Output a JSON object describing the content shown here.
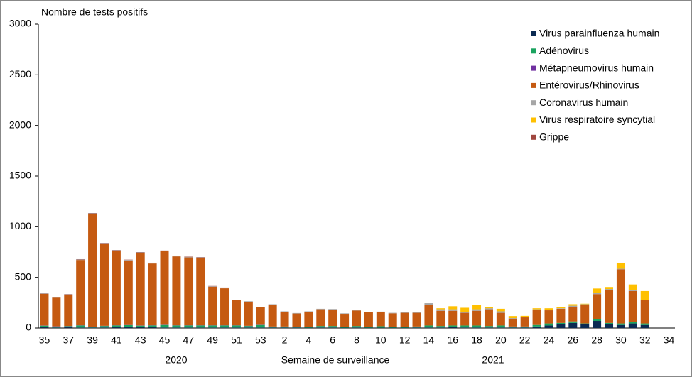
{
  "chart_data": {
    "type": "stacked_bar",
    "y_label": "Nombre de tests positifs",
    "x_label": "Semaine de surveillance",
    "annotations": [
      "2020",
      "2021"
    ],
    "categories": [
      "35",
      null,
      "37",
      null,
      "39",
      null,
      "41",
      null,
      "43",
      null,
      "45",
      null,
      "47",
      null,
      "49",
      null,
      "51",
      null,
      "53",
      null,
      "2",
      null,
      "4",
      null,
      "6",
      null,
      "8",
      null,
      "10",
      null,
      "12",
      null,
      "14",
      null,
      "16",
      null,
      "18",
      null,
      "20",
      null,
      "22",
      null,
      "24",
      null,
      "26",
      null,
      "28",
      null,
      "30",
      null,
      "32",
      null,
      "34"
    ],
    "ylim": [
      0,
      3000
    ],
    "yticks": [
      0,
      500,
      1000,
      1500,
      2000,
      2500,
      3000
    ],
    "grid": false,
    "legend": "upper right",
    "series": [
      {
        "name": "Virus parainfluenza humain",
        "color": "#0b2a52",
        "values": [
          8,
          5,
          8,
          5,
          5,
          5,
          10,
          8,
          8,
          10,
          5,
          5,
          5,
          5,
          5,
          5,
          5,
          5,
          5,
          5,
          5,
          5,
          3,
          5,
          5,
          3,
          5,
          3,
          3,
          3,
          3,
          5,
          5,
          5,
          10,
          5,
          5,
          5,
          5,
          5,
          5,
          15,
          25,
          35,
          50,
          35,
          70,
          35,
          30,
          45,
          30,
          null,
          null
        ]
      },
      {
        "name": "Adénovirus",
        "color": "#1aa35f",
        "values": [
          15,
          10,
          10,
          20,
          5,
          15,
          15,
          20,
          15,
          15,
          25,
          20,
          20,
          20,
          20,
          20,
          20,
          15,
          25,
          10,
          10,
          5,
          10,
          15,
          15,
          10,
          15,
          10,
          15,
          10,
          10,
          10,
          20,
          15,
          15,
          20,
          20,
          15,
          20,
          10,
          10,
          15,
          20,
          15,
          15,
          10,
          20,
          15,
          15,
          15,
          15,
          null,
          null
        ]
      },
      {
        "name": "Métapneumovirus humain",
        "color": "#7030a0",
        "values": [
          2,
          2,
          2,
          2,
          2,
          2,
          2,
          2,
          2,
          2,
          2,
          2,
          2,
          2,
          2,
          2,
          2,
          2,
          2,
          0,
          0,
          0,
          0,
          0,
          0,
          0,
          0,
          0,
          0,
          0,
          0,
          0,
          0,
          0,
          0,
          0,
          0,
          0,
          0,
          0,
          0,
          0,
          0,
          0,
          0,
          0,
          0,
          0,
          0,
          0,
          0,
          null,
          null
        ]
      },
      {
        "name": "Entérovirus/Rhinovirus",
        "color": "#c55a11",
        "values": [
          312,
          283,
          307,
          645,
          1115,
          810,
          735,
          637,
          717,
          610,
          725,
          680,
          670,
          665,
          380,
          365,
          248,
          238,
          173,
          210,
          145,
          133,
          147,
          165,
          163,
          127,
          153,
          142,
          139,
          132,
          137,
          135,
          200,
          150,
          145,
          125,
          145,
          165,
          125,
          78,
          90,
          150,
          130,
          140,
          145,
          185,
          245,
          325,
          535,
          305,
          230,
          null,
          null
        ]
      },
      {
        "name": "Coronavirus humain",
        "color": "#a6a6a6",
        "values": [
          5,
          5,
          5,
          5,
          5,
          5,
          5,
          5,
          5,
          5,
          5,
          5,
          5,
          5,
          5,
          5,
          5,
          5,
          5,
          10,
          5,
          5,
          5,
          5,
          5,
          5,
          5,
          5,
          5,
          5,
          5,
          5,
          20,
          15,
          15,
          10,
          15,
          10,
          15,
          5,
          5,
          5,
          5,
          5,
          10,
          5,
          10,
          10,
          5,
          10,
          5,
          null,
          null
        ]
      },
      {
        "name": "Virus respiratoire syncytial",
        "color": "#ffc000",
        "values": [
          0,
          0,
          0,
          0,
          0,
          0,
          0,
          0,
          0,
          0,
          0,
          0,
          0,
          0,
          0,
          0,
          0,
          0,
          0,
          0,
          0,
          0,
          0,
          0,
          0,
          0,
          0,
          0,
          0,
          0,
          0,
          0,
          0,
          10,
          30,
          40,
          40,
          15,
          25,
          20,
          10,
          10,
          15,
          15,
          15,
          5,
          45,
          20,
          60,
          55,
          85,
          null,
          null
        ]
      },
      {
        "name": "Grippe",
        "color": "#a0473f",
        "values": [
          3,
          3,
          3,
          3,
          3,
          3,
          3,
          3,
          3,
          3,
          3,
          3,
          3,
          3,
          3,
          3,
          0,
          0,
          0,
          0,
          0,
          0,
          0,
          0,
          0,
          0,
          0,
          0,
          0,
          0,
          0,
          0,
          0,
          0,
          0,
          0,
          0,
          0,
          0,
          0,
          0,
          0,
          0,
          0,
          0,
          0,
          0,
          0,
          0,
          0,
          0,
          null,
          null
        ]
      }
    ]
  }
}
